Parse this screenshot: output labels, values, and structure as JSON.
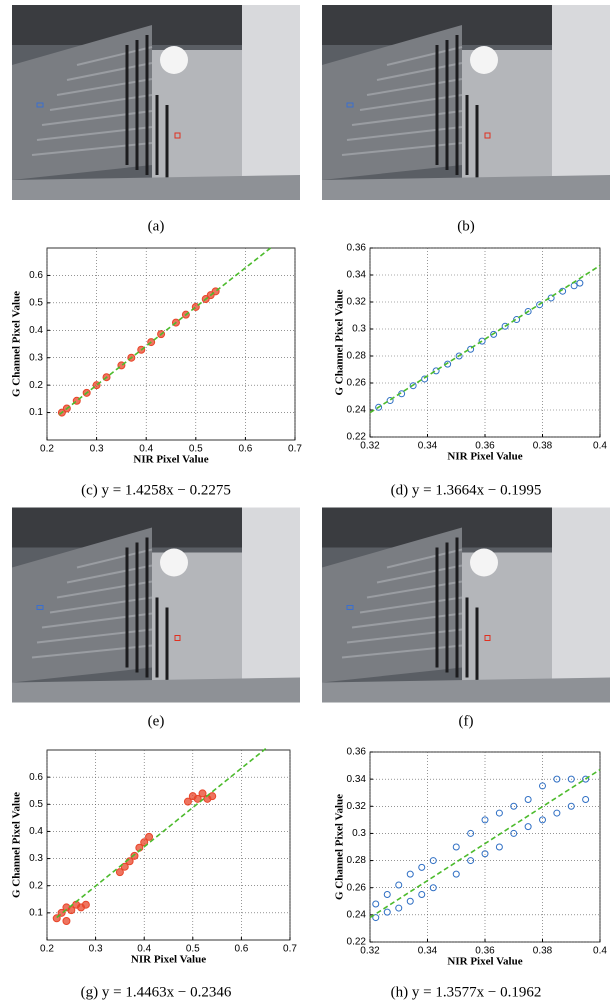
{
  "photos": [
    {
      "caption": "(a)"
    },
    {
      "caption": "(b)"
    },
    {
      "caption": "(e)"
    },
    {
      "caption": "(f)"
    }
  ],
  "chart_data": [
    {
      "type": "scatter",
      "caption": "(c) y = 1.4258x − 0.2275",
      "x_label": "NIR Pixel Value",
      "y_label": "G Channel Pixel Value",
      "xlim": [
        0.2,
        0.7
      ],
      "xticks": [
        0.2,
        0.3,
        0.4,
        0.5,
        0.6,
        0.7
      ],
      "ylim": [
        0,
        0.7
      ],
      "yticks": [
        0.1,
        0.2,
        0.3,
        0.4,
        0.5,
        0.6
      ],
      "grid": true,
      "color": "#e8452a",
      "marker": "filled",
      "x": [
        0.23,
        0.24,
        0.26,
        0.28,
        0.3,
        0.32,
        0.35,
        0.37,
        0.39,
        0.41,
        0.43,
        0.46,
        0.48,
        0.5,
        0.52,
        0.53,
        0.54
      ],
      "values": [
        0.1,
        0.115,
        0.143,
        0.172,
        0.2,
        0.229,
        0.272,
        0.3,
        0.329,
        0.357,
        0.386,
        0.428,
        0.457,
        0.485,
        0.514,
        0.528,
        0.542
      ],
      "fit": {
        "color": "#4cbb2c",
        "x": [
          0.225,
          0.655
        ],
        "y": [
          0.093,
          0.706
        ]
      }
    },
    {
      "type": "scatter",
      "caption": "(d) y = 1.3664x − 0.1995",
      "x_label": "NIR Pixel Value",
      "y_label": "G Channel Pixel Value",
      "xlim": [
        0.32,
        0.4
      ],
      "xticks": [
        0.32,
        0.34,
        0.36,
        0.38,
        0.4
      ],
      "ylim": [
        0.22,
        0.36
      ],
      "yticks": [
        0.22,
        0.24,
        0.26,
        0.28,
        0.3,
        0.32,
        0.34,
        0.36
      ],
      "grid": true,
      "color": "#2f6fc4",
      "marker": "open",
      "x": [
        0.323,
        0.327,
        0.331,
        0.335,
        0.339,
        0.343,
        0.347,
        0.351,
        0.355,
        0.359,
        0.363,
        0.367,
        0.371,
        0.375,
        0.379,
        0.383,
        0.387,
        0.391,
        0.393
      ],
      "values": [
        0.242,
        0.247,
        0.252,
        0.258,
        0.263,
        0.269,
        0.274,
        0.28,
        0.285,
        0.291,
        0.296,
        0.302,
        0.307,
        0.313,
        0.318,
        0.323,
        0.328,
        0.332,
        0.334
      ],
      "fit": {
        "color": "#4cbb2c",
        "x": [
          0.32,
          0.4
        ],
        "y": [
          0.238,
          0.347
        ]
      }
    },
    {
      "type": "scatter",
      "caption": "(g) y = 1.4463x − 0.2346",
      "x_label": "NIR Pixel Value",
      "y_label": "G Channel Pixel Value",
      "xlim": [
        0.2,
        0.7
      ],
      "xticks": [
        0.2,
        0.3,
        0.4,
        0.5,
        0.6,
        0.7
      ],
      "ylim": [
        0,
        0.7
      ],
      "yticks": [
        0.1,
        0.2,
        0.3,
        0.4,
        0.5,
        0.6
      ],
      "grid": true,
      "color": "#e8452a",
      "marker": "filled",
      "x": [
        0.22,
        0.23,
        0.24,
        0.24,
        0.25,
        0.26,
        0.27,
        0.28,
        0.35,
        0.36,
        0.37,
        0.38,
        0.39,
        0.4,
        0.41,
        0.49,
        0.5,
        0.51,
        0.52,
        0.53,
        0.54
      ],
      "values": [
        0.08,
        0.1,
        0.07,
        0.12,
        0.11,
        0.13,
        0.12,
        0.13,
        0.25,
        0.27,
        0.29,
        0.31,
        0.34,
        0.36,
        0.38,
        0.51,
        0.53,
        0.52,
        0.54,
        0.52,
        0.53
      ],
      "fit": {
        "color": "#4cbb2c",
        "x": [
          0.22,
          0.65
        ],
        "y": [
          0.083,
          0.705
        ]
      }
    },
    {
      "type": "scatter",
      "caption": "(h) y = 1.3577x − 0.1962",
      "x_label": "NIR Pixel Value",
      "y_label": "G Channel Pixel Value",
      "xlim": [
        0.32,
        0.4
      ],
      "xticks": [
        0.32,
        0.34,
        0.36,
        0.38,
        0.4
      ],
      "ylim": [
        0.22,
        0.36
      ],
      "yticks": [
        0.22,
        0.24,
        0.26,
        0.28,
        0.3,
        0.32,
        0.34,
        0.36
      ],
      "grid": true,
      "color": "#2f6fc4",
      "marker": "open",
      "x": [
        0.322,
        0.322,
        0.326,
        0.326,
        0.33,
        0.33,
        0.334,
        0.334,
        0.338,
        0.338,
        0.342,
        0.342,
        0.35,
        0.35,
        0.355,
        0.355,
        0.36,
        0.36,
        0.365,
        0.365,
        0.37,
        0.37,
        0.375,
        0.375,
        0.38,
        0.38,
        0.385,
        0.385,
        0.39,
        0.39,
        0.395,
        0.395
      ],
      "values": [
        0.238,
        0.248,
        0.242,
        0.255,
        0.245,
        0.262,
        0.25,
        0.27,
        0.255,
        0.275,
        0.26,
        0.28,
        0.27,
        0.29,
        0.28,
        0.3,
        0.285,
        0.31,
        0.29,
        0.315,
        0.3,
        0.32,
        0.305,
        0.325,
        0.31,
        0.335,
        0.315,
        0.34,
        0.32,
        0.34,
        0.325,
        0.34
      ],
      "fit": {
        "color": "#4cbb2c",
        "x": [
          0.32,
          0.4
        ],
        "y": [
          0.238,
          0.347
        ]
      }
    }
  ]
}
